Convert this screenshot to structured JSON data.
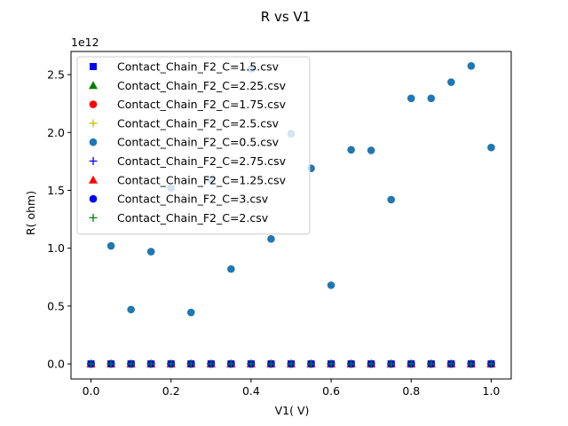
{
  "chart_data": {
    "type": "scatter",
    "title": "R vs V1",
    "xlabel": "V1( V)",
    "ylabel": "R( ohm)",
    "y_offset_label": "1e12",
    "xlim": [
      -0.05,
      1.05
    ],
    "ylim": [
      -0.13,
      2.7
    ],
    "x_ticks": [
      0.0,
      0.2,
      0.4,
      0.6,
      0.8,
      1.0
    ],
    "x_tick_labels": [
      "0.0",
      "0.2",
      "0.4",
      "0.6",
      "0.8",
      "1.0"
    ],
    "y_ticks": [
      0.0,
      0.5,
      1.0,
      1.5,
      2.0,
      2.5
    ],
    "y_tick_labels": [
      "0.0",
      "0.5",
      "1.0",
      "1.5",
      "2.0",
      "2.5"
    ],
    "y_units_note": "values in units of 1e12 ohm",
    "x": [
      0.0,
      0.05,
      0.1,
      0.15,
      0.2,
      0.25,
      0.3,
      0.35,
      0.4,
      0.45,
      0.5,
      0.55,
      0.6,
      0.65,
      0.7,
      0.75,
      0.8,
      0.85,
      0.9,
      0.95,
      1.0
    ],
    "grid": false,
    "legend_position": "upper-left",
    "series": [
      {
        "name": "Contact_Chain_F2_C=1.5.csv",
        "marker": "square",
        "color": "#0000ff",
        "y": [
          0,
          0,
          0,
          0,
          0,
          0,
          0,
          0,
          0,
          0,
          0,
          0,
          0,
          0,
          0,
          0,
          0,
          0,
          0,
          0,
          0
        ]
      },
      {
        "name": "Contact_Chain_F2_C=2.25.csv",
        "marker": "triangle",
        "color": "#008000",
        "y": [
          0,
          0,
          0,
          0,
          0,
          0,
          0,
          0,
          0,
          0,
          0,
          0,
          0,
          0,
          0,
          0,
          0,
          0,
          0,
          0,
          0
        ]
      },
      {
        "name": "Contact_Chain_F2_C=1.75.csv",
        "marker": "circle",
        "color": "#ff0000",
        "y": [
          0,
          0,
          0,
          0,
          0,
          0,
          0,
          0,
          0,
          0,
          0,
          0,
          0,
          0,
          0,
          0,
          0,
          0,
          0,
          0,
          0
        ]
      },
      {
        "name": "Contact_Chain_F2_C=2.5.csv",
        "marker": "plus",
        "color": "#bfbf00",
        "y": [
          0,
          0,
          0,
          0,
          0,
          0,
          0,
          0,
          0,
          0,
          0,
          0,
          0,
          0,
          0,
          0,
          0,
          0,
          0,
          0,
          0
        ]
      },
      {
        "name": "Contact_Chain_F2_C=0.5.csv",
        "marker": "circle",
        "color": "#1f77b4",
        "y": [
          0.0,
          1.02,
          0.47,
          0.97,
          1.52,
          0.445,
          1.59,
          0.82,
          2.55,
          1.08,
          1.99,
          1.69,
          0.68,
          1.85,
          1.845,
          1.42,
          2.295,
          2.295,
          2.435,
          2.575,
          1.87
        ]
      },
      {
        "name": "Contact_Chain_F2_C=2.75.csv",
        "marker": "plus",
        "color": "#0000ff",
        "y": [
          0,
          0,
          0,
          0,
          0,
          0,
          0,
          0,
          0,
          0,
          0,
          0,
          0,
          0,
          0,
          0,
          0,
          0,
          0,
          0,
          0
        ]
      },
      {
        "name": "Contact_Chain_F2_C=1.25.csv",
        "marker": "triangle",
        "color": "#ff0000",
        "y": [
          0,
          0,
          0,
          0,
          0,
          0,
          0,
          0,
          0,
          0,
          0,
          0,
          0,
          0,
          0,
          0,
          0,
          0,
          0,
          0,
          0
        ]
      },
      {
        "name": "Contact_Chain_F2_C=3.csv",
        "marker": "circle",
        "color": "#0000ff",
        "y": [
          0,
          0,
          0,
          0,
          0,
          0,
          0,
          0,
          0,
          0,
          0,
          0,
          0,
          0,
          0,
          0,
          0,
          0,
          0,
          0,
          0
        ]
      },
      {
        "name": "Contact_Chain_F2_C=2.csv",
        "marker": "plus",
        "color": "#008000",
        "y": [
          0,
          0,
          0,
          0,
          0,
          0,
          0,
          0,
          0,
          0,
          0,
          0,
          0,
          0,
          0,
          0,
          0,
          0,
          0,
          0,
          0
        ]
      }
    ]
  }
}
